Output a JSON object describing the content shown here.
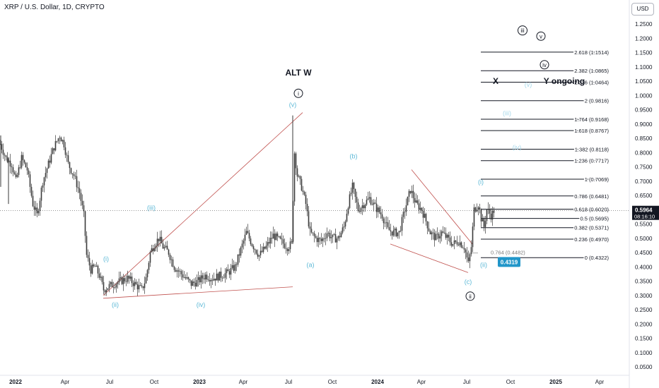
{
  "header": {
    "symbol_title": "XRP / U.S. Dollar, 1D, CRYPTO",
    "currency_button": "USD"
  },
  "colors": {
    "background": "#ffffff",
    "candles": "#3a3a3a",
    "wave_label": "#5bb8d6",
    "trend_line": "#c0504d",
    "fib_line": "#131722",
    "price_tag": "#131722",
    "marker_box": "#2196c9"
  },
  "chart_data": {
    "type": "candlestick",
    "x_ticks": [
      "2022",
      "Apr",
      "Jul",
      "Oct",
      "2023",
      "Apr",
      "Jul",
      "Oct",
      "2024",
      "Apr",
      "Jul",
      "Oct",
      "2025",
      "Apr"
    ],
    "y_ticks": [
      "0.0500",
      "0.1000",
      "0.1500",
      "0.2000",
      "0.2500",
      "0.3000",
      "0.3500",
      "0.4000",
      "0.4500",
      "0.5000",
      "0.5500",
      "0.6000",
      "0.6500",
      "0.7000",
      "0.7500",
      "0.8000",
      "0.8500",
      "0.9000",
      "0.9500",
      "1.0000",
      "1.0500",
      "1.1000",
      "1.1500",
      "1.2000",
      "1.2500"
    ],
    "ylim": [
      0.03,
      1.28
    ],
    "last_price": "0.5964",
    "countdown": "08:16:10",
    "price_series": [
      {
        "t": 0,
        "p": 0.83
      },
      {
        "t": 8,
        "p": 0.78
      },
      {
        "t": 16,
        "p": 0.76
      },
      {
        "t": 22,
        "p": 0.7
      },
      {
        "t": 30,
        "p": 0.78
      },
      {
        "t": 38,
        "p": 0.74
      },
      {
        "t": 46,
        "p": 0.62
      },
      {
        "t": 52,
        "p": 0.58
      },
      {
        "t": 60,
        "p": 0.7
      },
      {
        "t": 68,
        "p": 0.76
      },
      {
        "t": 76,
        "p": 0.82
      },
      {
        "t": 84,
        "p": 0.86
      },
      {
        "t": 90,
        "p": 0.83
      },
      {
        "t": 96,
        "p": 0.76
      },
      {
        "t": 104,
        "p": 0.72
      },
      {
        "t": 112,
        "p": 0.66
      },
      {
        "t": 118,
        "p": 0.58
      },
      {
        "t": 122,
        "p": 0.44
      },
      {
        "t": 128,
        "p": 0.39
      },
      {
        "t": 134,
        "p": 0.4
      },
      {
        "t": 140,
        "p": 0.37
      },
      {
        "t": 146,
        "p": 0.32
      },
      {
        "t": 152,
        "p": 0.33
      },
      {
        "t": 160,
        "p": 0.34
      },
      {
        "t": 170,
        "p": 0.35
      },
      {
        "t": 180,
        "p": 0.36
      },
      {
        "t": 190,
        "p": 0.34
      },
      {
        "t": 200,
        "p": 0.32
      },
      {
        "t": 206,
        "p": 0.36
      },
      {
        "t": 212,
        "p": 0.45
      },
      {
        "t": 218,
        "p": 0.48
      },
      {
        "t": 224,
        "p": 0.5
      },
      {
        "t": 230,
        "p": 0.47
      },
      {
        "t": 238,
        "p": 0.45
      },
      {
        "t": 246,
        "p": 0.4
      },
      {
        "t": 254,
        "p": 0.38
      },
      {
        "t": 262,
        "p": 0.36
      },
      {
        "t": 270,
        "p": 0.34
      },
      {
        "t": 280,
        "p": 0.35
      },
      {
        "t": 290,
        "p": 0.37
      },
      {
        "t": 300,
        "p": 0.36
      },
      {
        "t": 312,
        "p": 0.37
      },
      {
        "t": 322,
        "p": 0.38
      },
      {
        "t": 332,
        "p": 0.4
      },
      {
        "t": 340,
        "p": 0.46
      },
      {
        "t": 348,
        "p": 0.52
      },
      {
        "t": 356,
        "p": 0.48
      },
      {
        "t": 366,
        "p": 0.44
      },
      {
        "t": 376,
        "p": 0.47
      },
      {
        "t": 386,
        "p": 0.51
      },
      {
        "t": 396,
        "p": 0.49
      },
      {
        "t": 406,
        "p": 0.47
      },
      {
        "t": 412,
        "p": 0.48
      },
      {
        "t": 416,
        "p": 0.8
      },
      {
        "t": 420,
        "p": 0.72
      },
      {
        "t": 426,
        "p": 0.68
      },
      {
        "t": 432,
        "p": 0.62
      },
      {
        "t": 438,
        "p": 0.52
      },
      {
        "t": 446,
        "p": 0.5
      },
      {
        "t": 454,
        "p": 0.49
      },
      {
        "t": 462,
        "p": 0.52
      },
      {
        "t": 470,
        "p": 0.5
      },
      {
        "t": 478,
        "p": 0.5
      },
      {
        "t": 486,
        "p": 0.54
      },
      {
        "t": 492,
        "p": 0.62
      },
      {
        "t": 498,
        "p": 0.68
      },
      {
        "t": 506,
        "p": 0.6
      },
      {
        "t": 514,
        "p": 0.62
      },
      {
        "t": 522,
        "p": 0.64
      },
      {
        "t": 530,
        "p": 0.61
      },
      {
        "t": 540,
        "p": 0.58
      },
      {
        "t": 548,
        "p": 0.53
      },
      {
        "t": 556,
        "p": 0.52
      },
      {
        "t": 564,
        "p": 0.52
      },
      {
        "t": 572,
        "p": 0.6
      },
      {
        "t": 580,
        "p": 0.67
      },
      {
        "t": 588,
        "p": 0.62
      },
      {
        "t": 596,
        "p": 0.6
      },
      {
        "t": 602,
        "p": 0.56
      },
      {
        "t": 608,
        "p": 0.52
      },
      {
        "t": 616,
        "p": 0.5
      },
      {
        "t": 624,
        "p": 0.52
      },
      {
        "t": 632,
        "p": 0.5
      },
      {
        "t": 640,
        "p": 0.48
      },
      {
        "t": 648,
        "p": 0.49
      },
      {
        "t": 656,
        "p": 0.47
      },
      {
        "t": 662,
        "p": 0.41
      },
      {
        "t": 666,
        "p": 0.47
      },
      {
        "t": 670,
        "p": 0.6
      },
      {
        "t": 676,
        "p": 0.62
      },
      {
        "t": 680,
        "p": 0.57
      },
      {
        "t": 684,
        "p": 0.54
      },
      {
        "t": 688,
        "p": 0.6
      },
      {
        "t": 694,
        "p": 0.58
      },
      {
        "t": 698,
        "p": 0.5964
      }
    ],
    "fib_levels": [
      {
        "label": "2.618 (1.1514)",
        "value": 1.1514
      },
      {
        "label": "2.382 (1.0865)",
        "value": 1.0865
      },
      {
        "label": "2.236 (1.0464)",
        "value": 1.0464
      },
      {
        "label": "2 (0.9816)",
        "value": 0.9816
      },
      {
        "label": "1.764 (0.9168)",
        "value": 0.9168
      },
      {
        "label": "1.618 (0.8767)",
        "value": 0.8767
      },
      {
        "label": "1.382 (0.8118)",
        "value": 0.8118
      },
      {
        "label": "1.236 (0.7717)",
        "value": 0.7717
      },
      {
        "label": "1 (0.7069)",
        "value": 0.7069
      },
      {
        "label": "0.786 (0.6481)",
        "value": 0.6481
      },
      {
        "label": "0.618 (0.6020)",
        "value": 0.602
      },
      {
        "label": "0.5 (0.5695)",
        "value": 0.5695
      },
      {
        "label": "0.382 (0.5371)",
        "value": 0.5371
      },
      {
        "label": "0.236 (0.4970)",
        "value": 0.497
      },
      {
        "label": "0 (0.4322)",
        "value": 0.4322
      }
    ],
    "retracement_label": "0.764 (0.4482)",
    "marker_value": "0.4319",
    "wave_labels": [
      {
        "text": "ALT W",
        "t": 422,
        "p": 1.07,
        "style": "title"
      },
      {
        "text": "i",
        "t": 422,
        "p": 1.0,
        "style": "circle"
      },
      {
        "text": "(v)",
        "t": 414,
        "p": 0.96,
        "style": "light"
      },
      {
        "text": "(iii)",
        "t": 214,
        "p": 0.6,
        "style": "light"
      },
      {
        "text": "(i)",
        "t": 150,
        "p": 0.42,
        "style": "light"
      },
      {
        "text": "(ii)",
        "t": 163,
        "p": 0.26,
        "style": "light"
      },
      {
        "text": "(iv)",
        "t": 284,
        "p": 0.26,
        "style": "light"
      },
      {
        "text": "(a)",
        "t": 439,
        "p": 0.4,
        "style": "light"
      },
      {
        "text": "(b)",
        "t": 500,
        "p": 0.78,
        "style": "light"
      },
      {
        "text": "(c)",
        "t": 662,
        "p": 0.34,
        "style": "light"
      },
      {
        "text": "ii",
        "t": 665,
        "p": 0.29,
        "style": "circle"
      },
      {
        "text": "(i)",
        "t": 680,
        "p": 0.69,
        "style": "light"
      },
      {
        "text": "(ii)",
        "t": 684,
        "p": 0.4,
        "style": "light"
      },
      {
        "text": "X",
        "t": 701,
        "p": 1.04,
        "style": "title"
      },
      {
        "text": "Y ongoing",
        "t": 798,
        "p": 1.04,
        "style": "title"
      },
      {
        "text": "iii",
        "t": 739,
        "p": 1.22,
        "style": "circle"
      },
      {
        "text": "v",
        "t": 765,
        "p": 1.2,
        "style": "circle"
      },
      {
        "text": "iv",
        "t": 770,
        "p": 1.1,
        "style": "circle"
      },
      {
        "text": "(v)",
        "t": 747,
        "p": 1.03,
        "style": "faint"
      },
      {
        "text": "(iii)",
        "t": 717,
        "p": 0.93,
        "style": "faint"
      },
      {
        "text": "(iv)",
        "t": 731,
        "p": 0.81,
        "style": "faint"
      }
    ],
    "trend_lines": [
      {
        "from": [
          146,
          0.3
        ],
        "to": [
          428,
          0.94
        ]
      },
      {
        "from": [
          146,
          0.29
        ],
        "to": [
          414,
          0.33
        ]
      },
      {
        "from": [
          582,
          0.74
        ],
        "to": [
          668,
          0.48
        ]
      },
      {
        "from": [
          552,
          0.48
        ],
        "to": [
          662,
          0.38
        ]
      }
    ]
  }
}
